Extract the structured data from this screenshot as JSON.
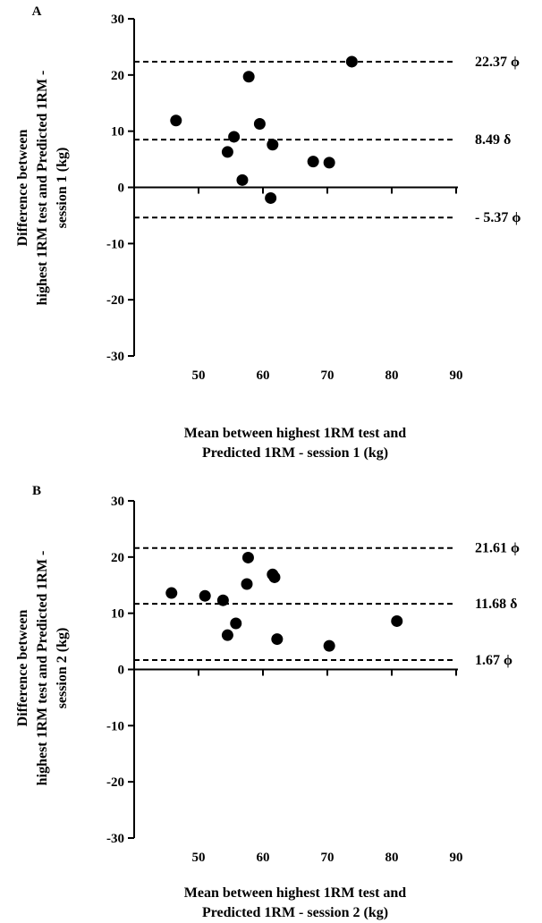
{
  "chart_data": [
    {
      "type": "scatter",
      "panel_label": "A",
      "xlabel_lines": [
        "Mean between highest 1RM test and",
        "Predicted 1RM - session 1 (kg)"
      ],
      "ylabel_lines": [
        "Difference between",
        "highest 1RM test and Predicted 1RM -",
        "session 1 (kg)"
      ],
      "xlim": [
        40,
        90
      ],
      "ylim": [
        -30,
        30
      ],
      "xticks": [
        50,
        60,
        70,
        80,
        90
      ],
      "yticks": [
        -30,
        -20,
        -10,
        0,
        10,
        20,
        30
      ],
      "series": [
        {
          "points": [
            {
              "x": 46.5,
              "y": 11.9
            },
            {
              "x": 54.5,
              "y": 6.3
            },
            {
              "x": 55.5,
              "y": 9.0
            },
            {
              "x": 56.8,
              "y": 1.3
            },
            {
              "x": 57.8,
              "y": 19.7
            },
            {
              "x": 59.5,
              "y": 11.3
            },
            {
              "x": 61.2,
              "y": -1.9
            },
            {
              "x": 61.5,
              "y": 7.6
            },
            {
              "x": 67.8,
              "y": 4.6
            },
            {
              "x": 70.3,
              "y": 4.4
            },
            {
              "x": 73.8,
              "y": 22.37
            }
          ]
        }
      ],
      "reference_lines": [
        {
          "y": 22.37,
          "label": "22.37 ϕ"
        },
        {
          "y": 8.49,
          "label": "8.49 δ"
        },
        {
          "y": -5.37,
          "label": "- 5.37 ϕ"
        }
      ],
      "grid": false
    },
    {
      "type": "scatter",
      "panel_label": "B",
      "xlabel_lines": [
        "Mean between highest 1RM test and",
        "Predicted 1RM - session 2 (kg)"
      ],
      "ylabel_lines": [
        "Difference between",
        "highest 1RM test and Predicted 1RM -",
        "session 2 (kg)"
      ],
      "xlim": [
        40,
        90
      ],
      "ylim": [
        -30,
        30
      ],
      "xticks": [
        50,
        60,
        70,
        80,
        90
      ],
      "yticks": [
        -30,
        -20,
        -10,
        0,
        10,
        20,
        30
      ],
      "series": [
        {
          "points": [
            {
              "x": 45.8,
              "y": 13.6
            },
            {
              "x": 51.0,
              "y": 13.1
            },
            {
              "x": 53.8,
              "y": 12.3
            },
            {
              "x": 54.5,
              "y": 6.1
            },
            {
              "x": 55.8,
              "y": 8.2
            },
            {
              "x": 57.5,
              "y": 15.2
            },
            {
              "x": 57.7,
              "y": 19.9
            },
            {
              "x": 61.5,
              "y": 16.9
            },
            {
              "x": 61.8,
              "y": 16.4
            },
            {
              "x": 62.2,
              "y": 5.4
            },
            {
              "x": 70.3,
              "y": 4.2
            },
            {
              "x": 80.8,
              "y": 8.6
            }
          ]
        }
      ],
      "reference_lines": [
        {
          "y": 21.61,
          "label": "21.61 ϕ"
        },
        {
          "y": 11.68,
          "label": "11.68 δ"
        },
        {
          "y": 1.67,
          "label": "1.67 ϕ"
        }
      ],
      "grid": false
    }
  ]
}
